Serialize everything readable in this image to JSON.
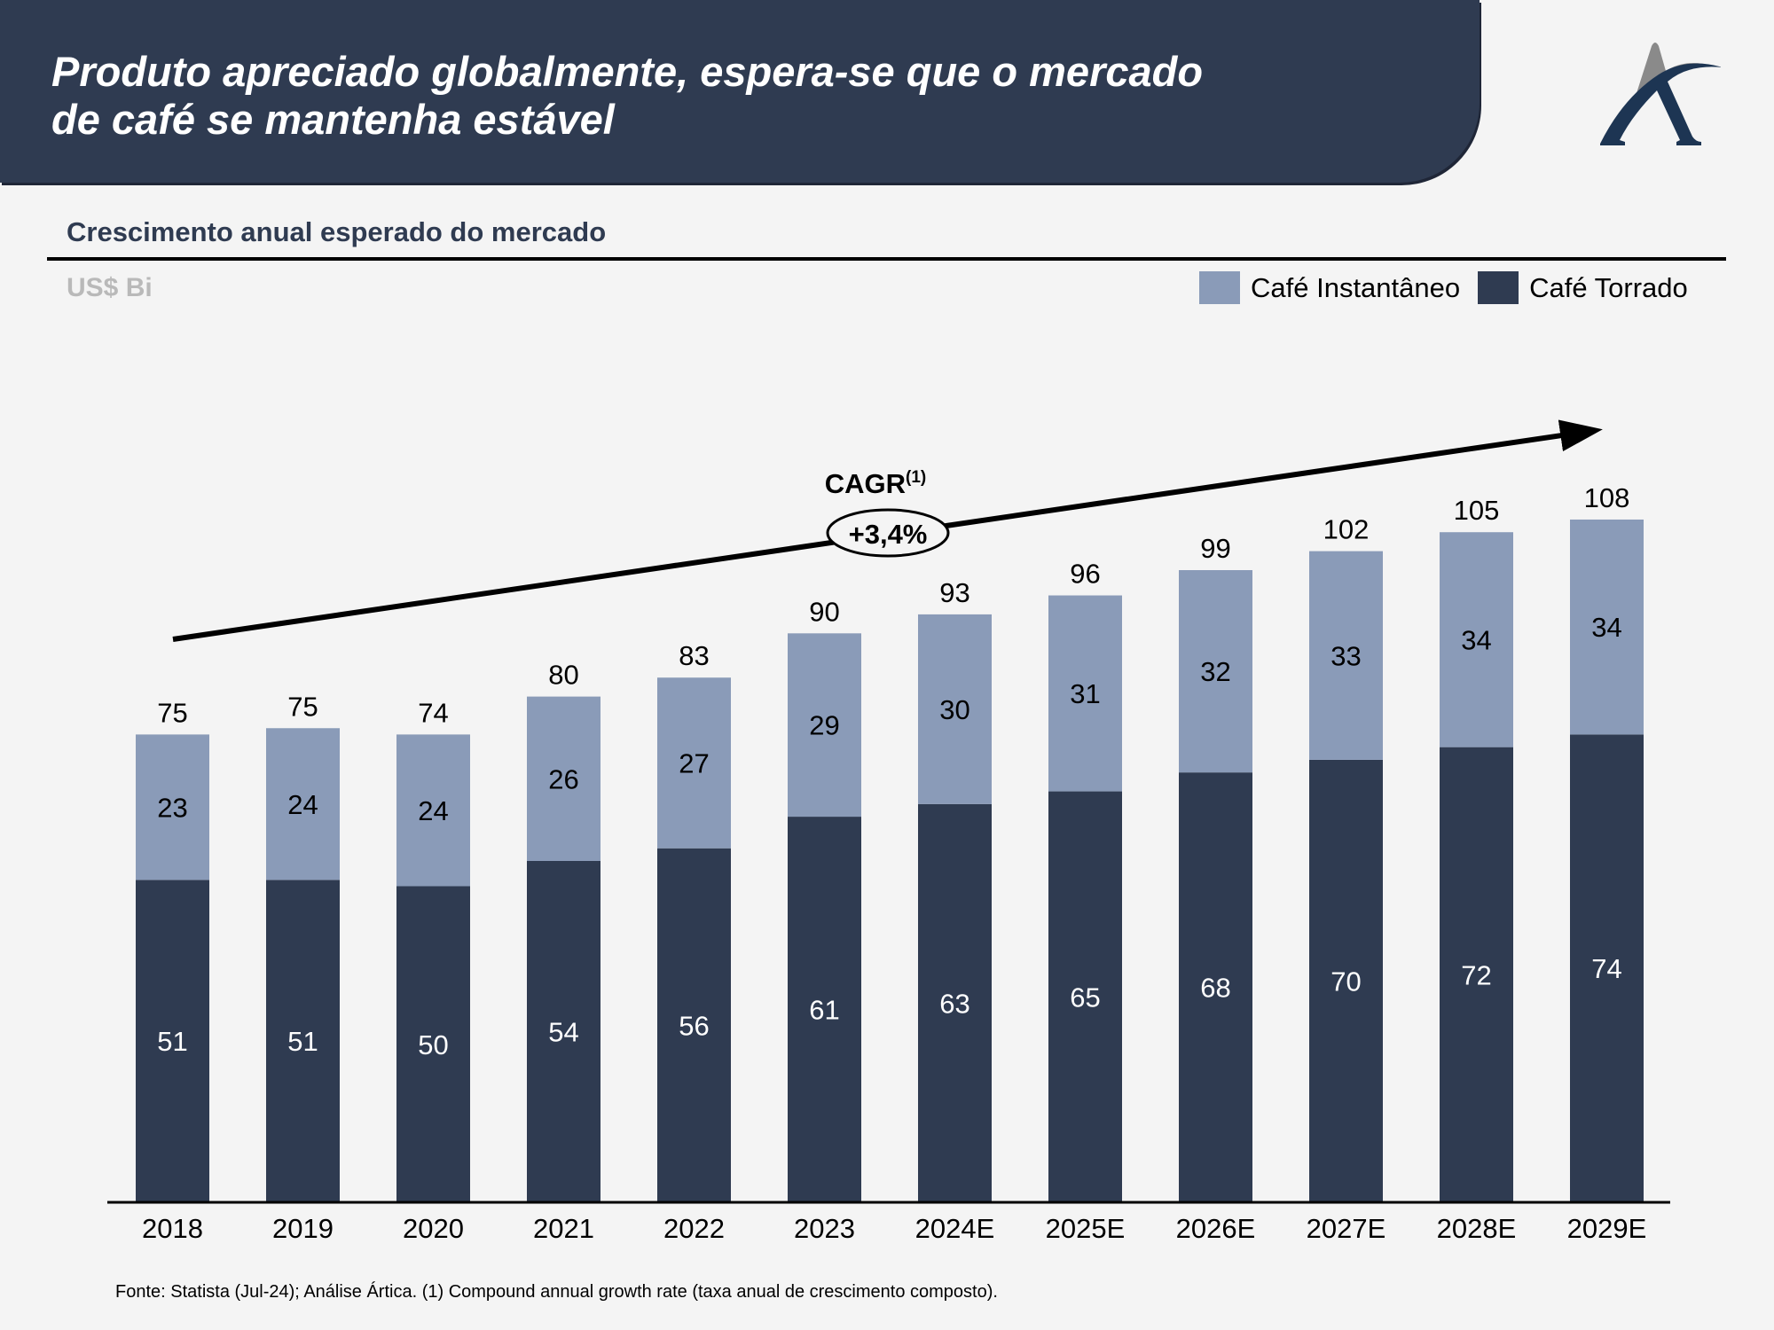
{
  "header": {
    "title_line1": "Produto apreciado globalmente, espera-se que o mercado",
    "title_line2": "de café se mantenha estável",
    "logo": "artica-a-logo-icon"
  },
  "section": {
    "subtitle": "Crescimento anual esperado do mercado",
    "unit": "US$ Bi"
  },
  "colors": {
    "header_bg": "#2f3b51",
    "instant": "#8a9bb8",
    "roasted": "#2f3b51",
    "background": "#f4f4f4"
  },
  "legend": [
    {
      "label": "Café Instantâneo",
      "color": "#8a9bb8"
    },
    {
      "label": "Café Torrado",
      "color": "#2f3b51"
    }
  ],
  "chart_data": {
    "type": "bar",
    "stacked": true,
    "title": "Crescimento anual esperado do mercado",
    "ylabel": "US$ Bi",
    "xlabel": "",
    "categories": [
      "2018",
      "2019",
      "2020",
      "2021",
      "2022",
      "2023",
      "2024E",
      "2025E",
      "2026E",
      "2027E",
      "2028E",
      "2029E"
    ],
    "series": [
      {
        "name": "Café Torrado",
        "values": [
          51,
          51,
          50,
          54,
          56,
          61,
          63,
          65,
          68,
          70,
          72,
          74
        ]
      },
      {
        "name": "Café Instantâneo",
        "values": [
          23,
          24,
          24,
          26,
          27,
          29,
          30,
          31,
          32,
          33,
          34,
          34
        ]
      }
    ],
    "totals": [
      75,
      75,
      74,
      80,
      83,
      90,
      93,
      96,
      99,
      102,
      105,
      108
    ],
    "ylim": [
      0,
      110
    ],
    "grid": false,
    "legend_position": "top-right",
    "annotation": {
      "label": "CAGR",
      "superscript": "(1)",
      "value": "+3,4%",
      "type": "trend-arrow"
    }
  },
  "footnote": "Fonte: Statista (Jul-24); Análise Ártica. (1) Compound annual growth rate (taxa anual de crescimento composto)."
}
